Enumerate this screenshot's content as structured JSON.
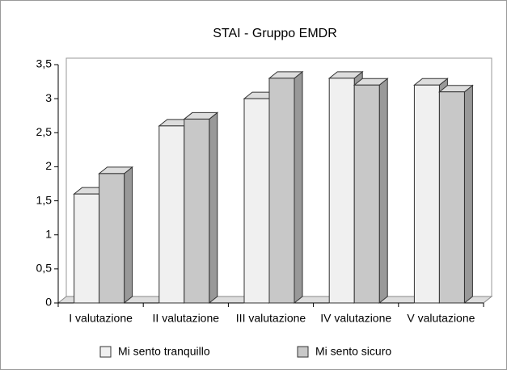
{
  "chart_data": {
    "type": "bar3d",
    "title": "STAI - Gruppo EMDR",
    "categories": [
      "I valutazione",
      "II valutazione",
      "III valutazione",
      "IV valutazione",
      "V valutazione"
    ],
    "series": [
      {
        "name": "Mi sento tranquillo",
        "color": "#f0f0f0",
        "values": [
          1.6,
          2.6,
          3.0,
          3.3,
          3.2
        ]
      },
      {
        "name": "Mi sento sicuro",
        "color": "#c8c8c8",
        "values": [
          1.9,
          2.7,
          3.3,
          3.2,
          3.1
        ]
      }
    ],
    "ylim": [
      0,
      3.5
    ],
    "yticks": [
      0,
      {
        "value": 0.5,
        "label": "0,5"
      },
      1,
      {
        "value": 1.5,
        "label": "1,5"
      },
      2,
      {
        "value": 2.5,
        "label": "2,5"
      },
      3,
      {
        "value": 3.5,
        "label": "3,5"
      }
    ],
    "legend": "bottom"
  }
}
